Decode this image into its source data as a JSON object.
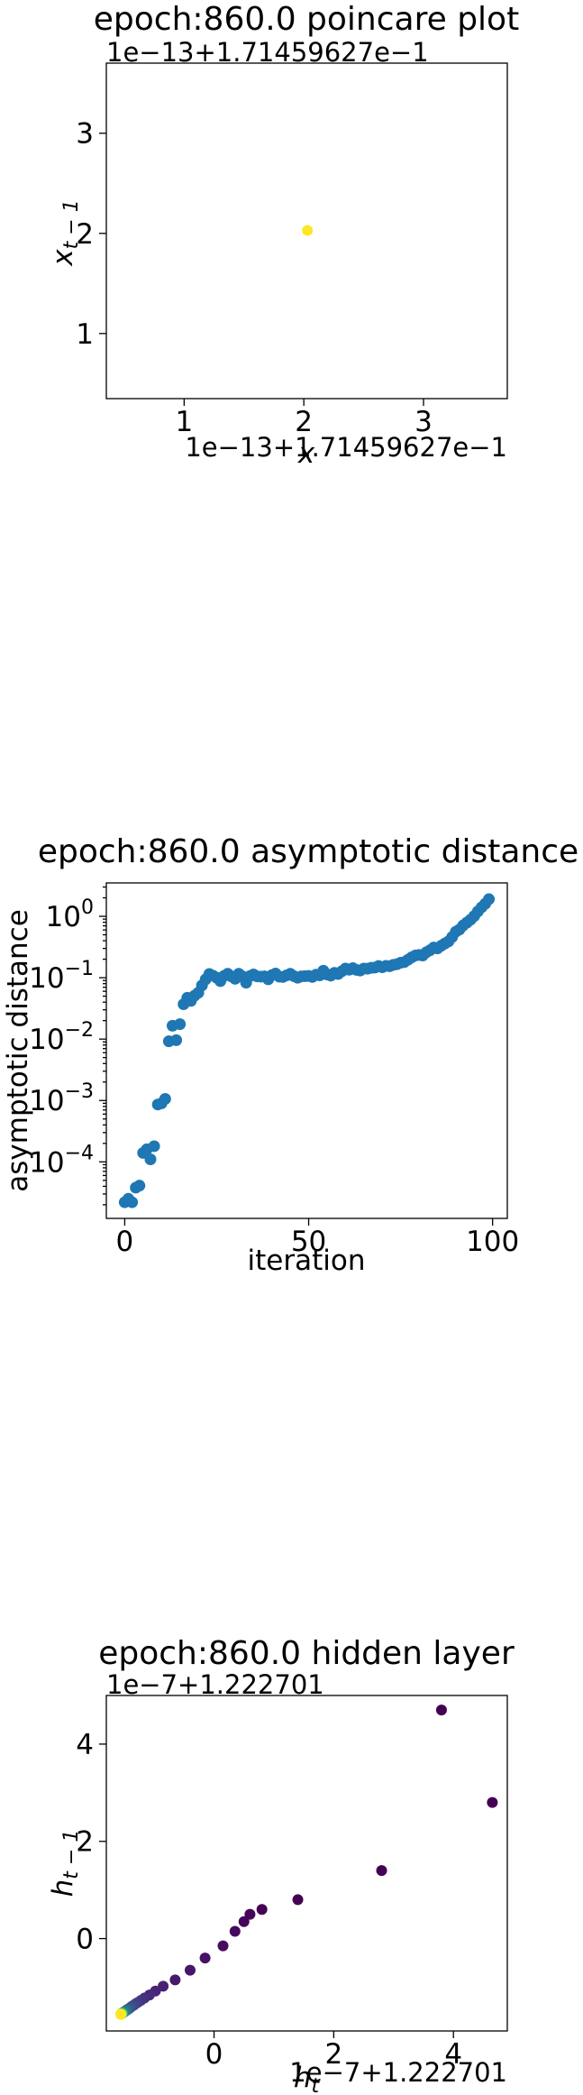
{
  "chart_data": [
    {
      "type": "scatter",
      "title": "epoch:860.0 poincare plot",
      "xlabel": "x_t",
      "ylabel": "x_{t-1}",
      "x_offset_text": "1e−13+1.71459627e−1",
      "y_offset_text": "1e−13+1.71459627e−1",
      "xlim": [
        0.35,
        3.7
      ],
      "ylim": [
        0.35,
        3.7
      ],
      "xticks": [
        1,
        2,
        3
      ],
      "xtick_labels": [
        "1",
        "2",
        "3"
      ],
      "yticks": [
        1,
        2,
        3
      ],
      "ytick_labels": [
        "1",
        "2",
        "3"
      ],
      "points": [
        {
          "x": 2.03,
          "y": 2.03,
          "color": "#fde725"
        }
      ],
      "grid": false
    },
    {
      "type": "scatter",
      "title": "epoch:860.0 asymptotic distance",
      "xlabel": "iteration",
      "ylabel": "asymptotic distance",
      "yscale": "log",
      "xlim": [
        -5,
        104
      ],
      "ylim": [
        1.2e-05,
        3.5
      ],
      "xticks": [
        0,
        50,
        100
      ],
      "xtick_labels": [
        "0",
        "50",
        "100"
      ],
      "yticks": [
        0.0001,
        0.001,
        0.01,
        0.1,
        1
      ],
      "ytick_labels": [
        "10",
        "10",
        "10",
        "10",
        "10"
      ],
      "ytick_exponents": [
        "−4",
        "−3",
        "−2",
        "−1",
        "0"
      ],
      "color": "#1f77b4",
      "x": [
        0,
        1,
        2,
        3,
        4,
        5,
        6,
        7,
        8,
        9,
        10,
        11,
        12,
        13,
        14,
        15,
        16,
        17,
        18,
        19,
        20,
        21,
        22,
        23,
        24,
        25,
        26,
        27,
        28,
        29,
        30,
        31,
        32,
        33,
        34,
        35,
        36,
        37,
        38,
        39,
        40,
        41,
        42,
        43,
        44,
        45,
        46,
        47,
        48,
        49,
        50,
        51,
        52,
        53,
        54,
        55,
        56,
        57,
        58,
        59,
        60,
        61,
        62,
        63,
        64,
        65,
        66,
        67,
        68,
        69,
        70,
        71,
        72,
        73,
        74,
        75,
        76,
        77,
        78,
        79,
        80,
        81,
        82,
        83,
        84,
        85,
        86,
        87,
        88,
        89,
        90,
        91,
        92,
        93,
        94,
        95,
        96,
        97,
        98,
        99
      ],
      "y": [
        2.2e-05,
        2.5e-05,
        2.2e-05,
        3.8e-05,
        4.1e-05,
        0.00014,
        0.00016,
        0.00011,
        0.00018,
        0.00086,
        0.0009,
        0.00106,
        0.0092,
        0.0165,
        0.0096,
        0.0175,
        0.037,
        0.047,
        0.042,
        0.051,
        0.057,
        0.075,
        0.094,
        0.115,
        0.108,
        0.1,
        0.088,
        0.107,
        0.116,
        0.105,
        0.096,
        0.116,
        0.105,
        0.083,
        0.106,
        0.113,
        0.105,
        0.104,
        0.105,
        0.094,
        0.11,
        0.117,
        0.104,
        0.103,
        0.109,
        0.116,
        0.106,
        0.1,
        0.105,
        0.106,
        0.107,
        0.103,
        0.112,
        0.109,
        0.13,
        0.113,
        0.108,
        0.12,
        0.115,
        0.127,
        0.141,
        0.135,
        0.143,
        0.134,
        0.131,
        0.141,
        0.14,
        0.145,
        0.146,
        0.155,
        0.148,
        0.156,
        0.154,
        0.162,
        0.166,
        0.175,
        0.18,
        0.196,
        0.215,
        0.23,
        0.235,
        0.23,
        0.26,
        0.28,
        0.31,
        0.3,
        0.33,
        0.36,
        0.39,
        0.46,
        0.56,
        0.61,
        0.71,
        0.79,
        0.88,
        1.01,
        1.2,
        1.4,
        1.6,
        1.9
      ],
      "grid": false
    },
    {
      "type": "scatter",
      "title": "epoch:860.0 hidden layer",
      "xlabel": "h_t",
      "ylabel": "h_{t-1}",
      "x_offset_text": "1e−7+1.222701",
      "y_offset_text": "1e−7+1.222701",
      "xlim": [
        -1.8,
        4.9
      ],
      "ylim": [
        -1.9,
        5.0
      ],
      "xticks": [
        0,
        2,
        4
      ],
      "xtick_labels": [
        "0",
        "2",
        "4"
      ],
      "yticks": [
        0,
        2,
        4
      ],
      "ytick_labels": [
        "0",
        "2",
        "4"
      ],
      "colormap": "viridis",
      "points": [
        {
          "x": 3.8,
          "y": 4.7,
          "color": "#440154"
        },
        {
          "x": 4.65,
          "y": 2.8,
          "color": "#440154"
        },
        {
          "x": 2.8,
          "y": 1.4,
          "color": "#440154"
        },
        {
          "x": 1.4,
          "y": 0.8,
          "color": "#440154"
        },
        {
          "x": 0.8,
          "y": 0.6,
          "color": "#440154"
        },
        {
          "x": 0.6,
          "y": 0.5,
          "color": "#450559"
        },
        {
          "x": 0.5,
          "y": 0.35,
          "color": "#450559"
        },
        {
          "x": 0.35,
          "y": 0.15,
          "color": "#46085c"
        },
        {
          "x": 0.15,
          "y": -0.15,
          "color": "#470d60"
        },
        {
          "x": -0.15,
          "y": -0.4,
          "color": "#471164"
        },
        {
          "x": -0.4,
          "y": -0.65,
          "color": "#481668"
        },
        {
          "x": -0.65,
          "y": -0.85,
          "color": "#481a6c"
        },
        {
          "x": -0.85,
          "y": -0.98,
          "color": "#482173"
        },
        {
          "x": -0.98,
          "y": -1.08,
          "color": "#482475"
        },
        {
          "x": -1.08,
          "y": -1.16,
          "color": "#472a7a"
        },
        {
          "x": -1.16,
          "y": -1.22,
          "color": "#46307e"
        },
        {
          "x": -1.22,
          "y": -1.27,
          "color": "#453581"
        },
        {
          "x": -1.27,
          "y": -1.31,
          "color": "#443a83"
        },
        {
          "x": -1.31,
          "y": -1.34,
          "color": "#424086"
        },
        {
          "x": -1.34,
          "y": -1.37,
          "color": "#414487"
        },
        {
          "x": -1.37,
          "y": -1.39,
          "color": "#3e4989"
        },
        {
          "x": -1.39,
          "y": -1.41,
          "color": "#3c4f8a"
        },
        {
          "x": -1.41,
          "y": -1.43,
          "color": "#3a548c"
        },
        {
          "x": -1.43,
          "y": -1.45,
          "color": "#38588c"
        },
        {
          "x": -1.45,
          "y": -1.46,
          "color": "#355f8d"
        },
        {
          "x": -1.46,
          "y": -1.47,
          "color": "#33638d"
        },
        {
          "x": -1.47,
          "y": -1.48,
          "color": "#31688e"
        },
        {
          "x": -1.48,
          "y": -1.49,
          "color": "#2e6e8e"
        },
        {
          "x": -1.49,
          "y": -1.5,
          "color": "#2c728e"
        },
        {
          "x": -1.5,
          "y": -1.505,
          "color": "#2a778e"
        },
        {
          "x": -1.505,
          "y": -1.51,
          "color": "#287c8e"
        },
        {
          "x": -1.51,
          "y": -1.515,
          "color": "#26818e"
        },
        {
          "x": -1.515,
          "y": -1.52,
          "color": "#24868e"
        },
        {
          "x": -1.52,
          "y": -1.523,
          "color": "#228b8d"
        },
        {
          "x": -1.523,
          "y": -1.526,
          "color": "#21908d"
        },
        {
          "x": -1.526,
          "y": -1.529,
          "color": "#1f958b"
        },
        {
          "x": -1.529,
          "y": -1.532,
          "color": "#1f9a8a"
        },
        {
          "x": -1.532,
          "y": -1.535,
          "color": "#20a386"
        },
        {
          "x": -1.535,
          "y": -1.537,
          "color": "#22a884"
        },
        {
          "x": -1.537,
          "y": -1.539,
          "color": "#28ae80"
        },
        {
          "x": -1.539,
          "y": -1.541,
          "color": "#2eb37c"
        },
        {
          "x": -1.541,
          "y": -1.543,
          "color": "#35b779"
        },
        {
          "x": -1.543,
          "y": -1.545,
          "color": "#3fbc73"
        },
        {
          "x": -1.545,
          "y": -1.546,
          "color": "#4ac16d"
        },
        {
          "x": -1.546,
          "y": -1.547,
          "color": "#56c667"
        },
        {
          "x": -1.547,
          "y": -1.548,
          "color": "#62cb5f"
        },
        {
          "x": -1.548,
          "y": -1.549,
          "color": "#6ece58"
        },
        {
          "x": -1.549,
          "y": -1.55,
          "color": "#7ad151"
        },
        {
          "x": -1.55,
          "y": -1.551,
          "color": "#88d548"
        },
        {
          "x": -1.551,
          "y": -1.552,
          "color": "#95d840"
        },
        {
          "x": -1.552,
          "y": -1.553,
          "color": "#a5db36"
        },
        {
          "x": -1.553,
          "y": -1.554,
          "color": "#b4de2c"
        },
        {
          "x": -1.554,
          "y": -1.555,
          "color": "#c2df23"
        },
        {
          "x": -1.555,
          "y": -1.556,
          "color": "#d2e21b"
        },
        {
          "x": -1.556,
          "y": -1.557,
          "color": "#e2e418"
        },
        {
          "x": -1.557,
          "y": -1.558,
          "color": "#f1e51d"
        },
        {
          "x": -1.558,
          "y": -1.559,
          "color": "#fde725"
        }
      ],
      "grid": false
    }
  ]
}
